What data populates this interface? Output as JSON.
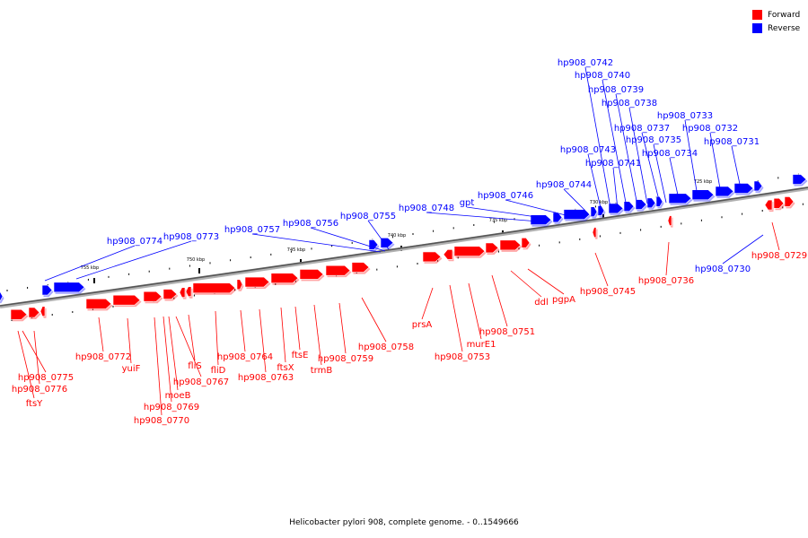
{
  "caption": "Helicobacter pylori 908, complete genome. - 0..1549666",
  "colors": {
    "forward": "#ff0000",
    "reverse": "#0000ff"
  },
  "legend": [
    {
      "label": "Forward",
      "color": "#ff0000"
    },
    {
      "label": "Reverse",
      "color": "#0000ff"
    }
  ],
  "tick_labels": [
    "725 kbp",
    "730 kbp",
    "735 kbp",
    "740 kbp",
    "745 kbp",
    "750 kbp",
    "755 kbp"
  ],
  "forward_genes": [
    "hp908_0775",
    "hp908_0776",
    "ftsY",
    "hp908_0772",
    "yuiF",
    "hp908_0767",
    "moeB",
    "hp908_0769",
    "hp908_0770",
    "fliS",
    "fliD",
    "hp908_0764",
    "hp908_0763",
    "ftsX",
    "ftsE",
    "trmB",
    "hp908_0759",
    "hp908_0758",
    "prsA",
    "hp908_0753",
    "murE1",
    "hp908_0751",
    "ddl",
    "pgpA",
    "hp908_0745",
    "hp908_0736",
    "hp908_0729"
  ],
  "reverse_genes": [
    "hp908_0774",
    "hp908_0773",
    "hp908_0757",
    "hp908_0756",
    "hp908_0755",
    "hp908_0748",
    "gpt",
    "hp908_0746",
    "hp908_0744",
    "hp908_0743",
    "hp908_0741",
    "hp908_0742",
    "hp908_0740",
    "hp908_0739",
    "hp908_0738",
    "hp908_0737",
    "hp908_0735",
    "hp908_0734",
    "hp908_0733",
    "hp908_0732",
    "hp908_0731",
    "hp908_0730"
  ]
}
